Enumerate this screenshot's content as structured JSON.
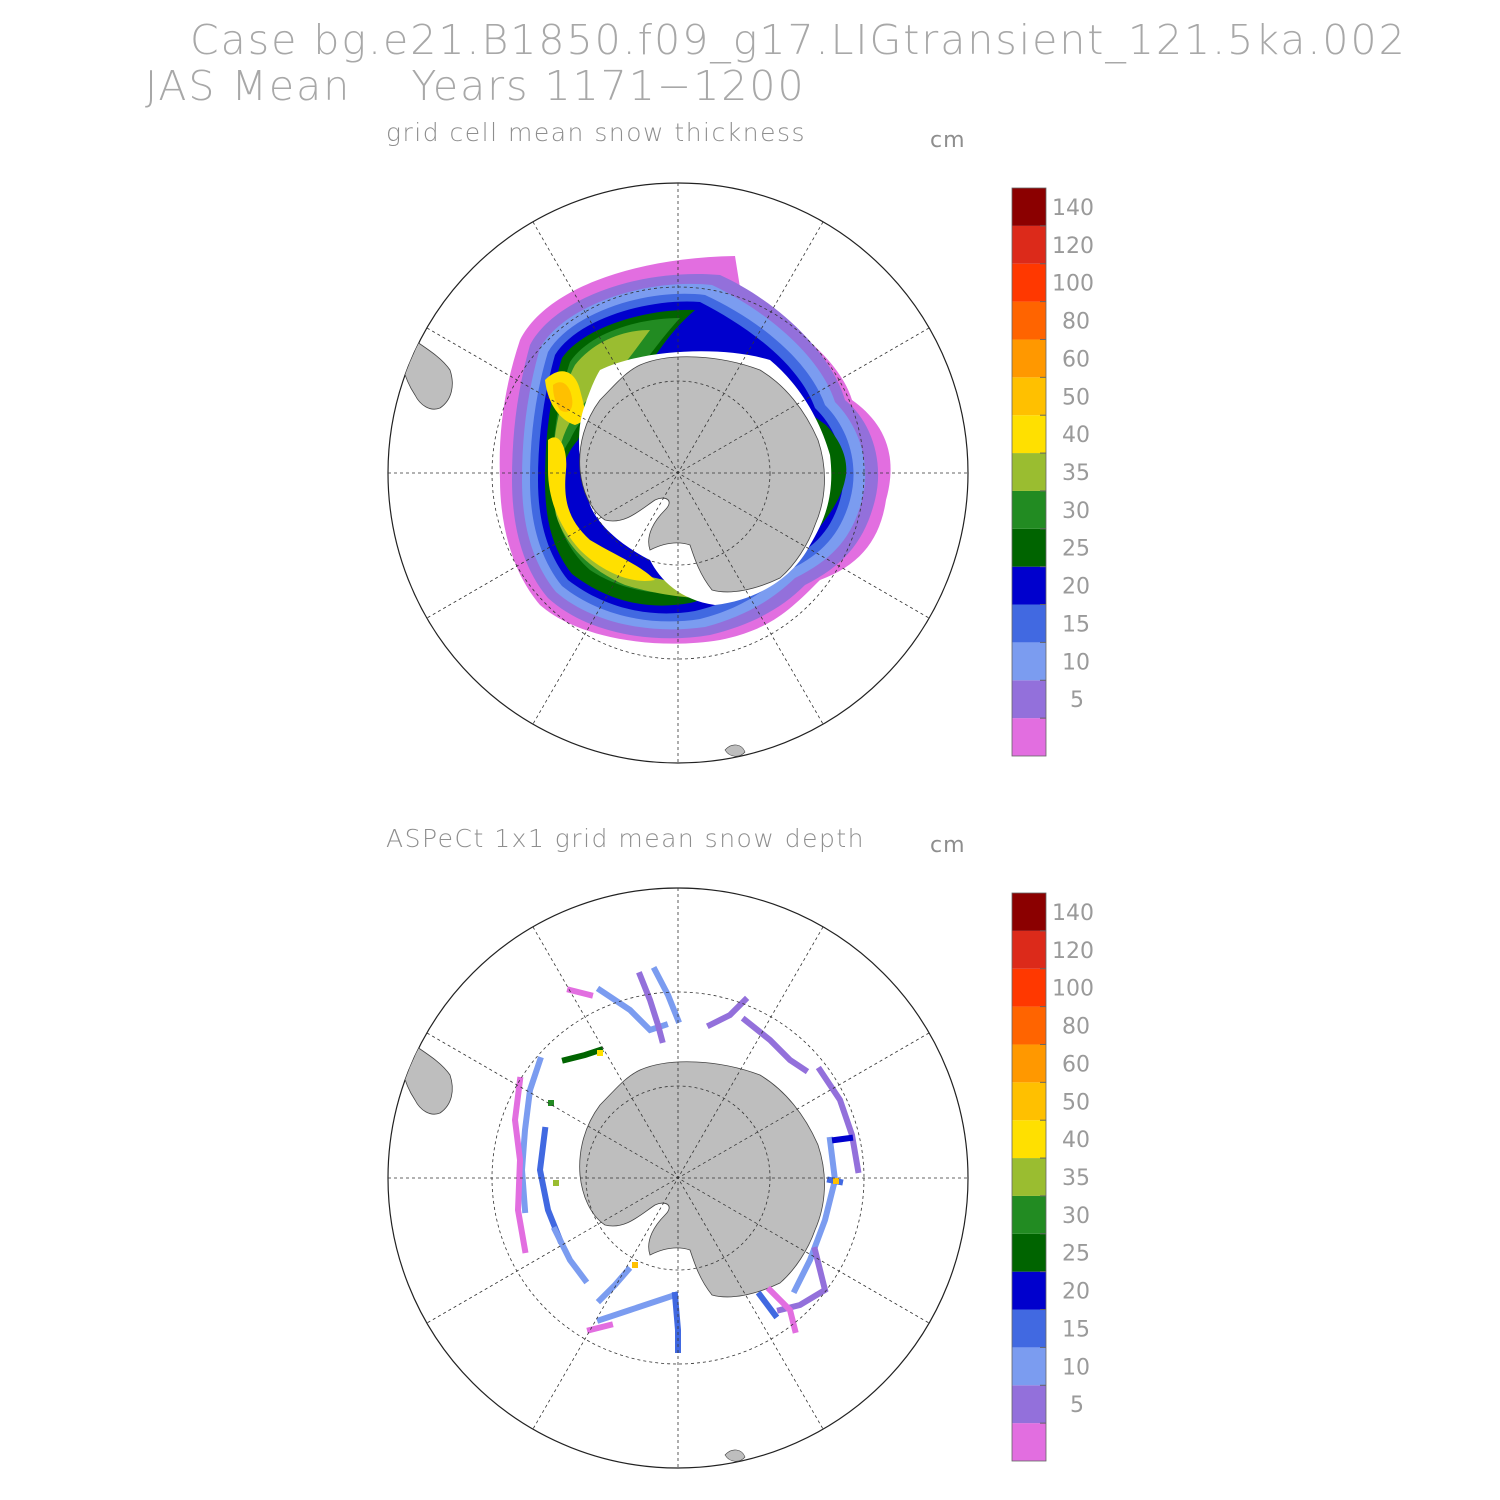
{
  "header": {
    "case_title": "Case bg.e21.B1850.f09_g17.LIGtransient_121.5ka.002",
    "period_title": "JAS Mean    Years 1171−1200"
  },
  "panels": [
    {
      "title": "grid cell mean snow thickness",
      "unit": "cm"
    },
    {
      "title": "ASPeCt 1x1 grid mean snow depth",
      "unit": "cm"
    }
  ],
  "colorbar": {
    "levels": [
      "5",
      "10",
      "15",
      "20",
      "25",
      "30",
      "35",
      "40",
      "50",
      "60",
      "80",
      "100",
      "120",
      "140"
    ],
    "colors": [
      "#e26ee0",
      "#9370db",
      "#7b9cf0",
      "#4169e1",
      "#0000cd",
      "#006400",
      "#228b22",
      "#9abd30",
      "#ffe000",
      "#ffc000",
      "#ff9800",
      "#ff6400",
      "#ff3800",
      "#dc2a1a",
      "#8b0000"
    ]
  },
  "land_color": "#bebebe"
}
